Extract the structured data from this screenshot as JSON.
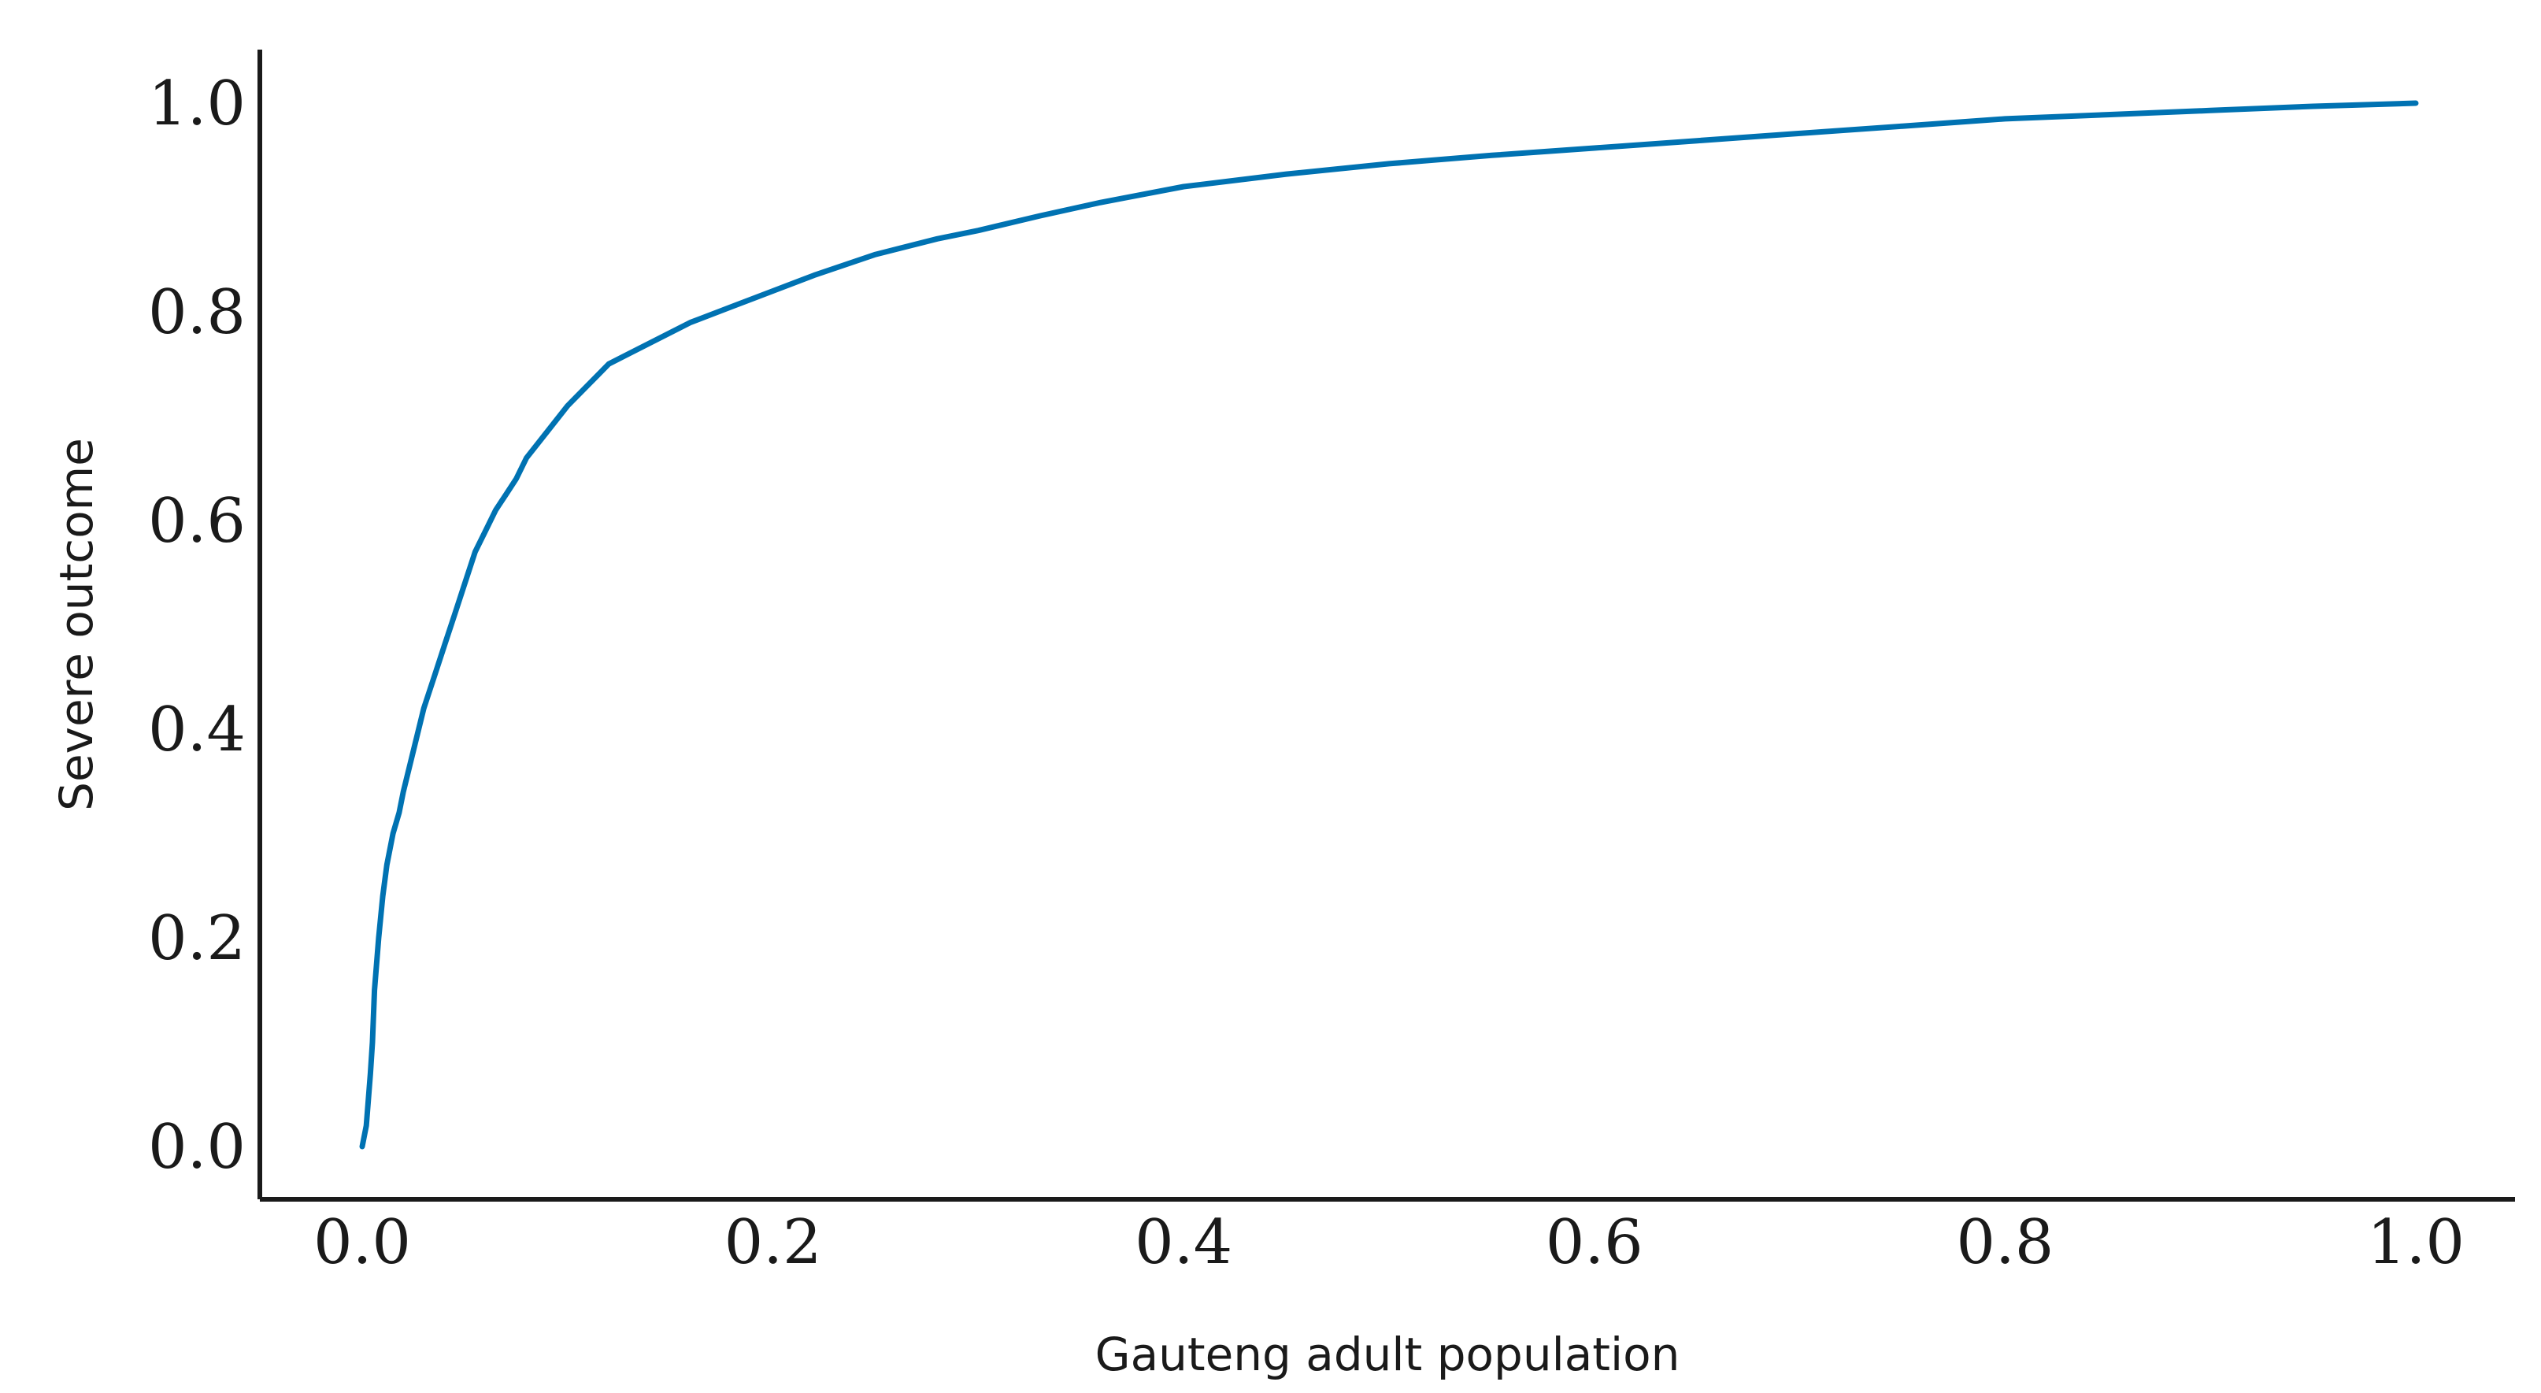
{
  "chart_data": {
    "type": "line",
    "title": "",
    "xlabel": "Gauteng adult population",
    "ylabel": "Severe outcome",
    "xlim": [
      -0.05,
      1.05
    ],
    "ylim": [
      -0.05,
      1.05
    ],
    "x_ticks": [
      0.0,
      0.2,
      0.4,
      0.6,
      0.8,
      1.0
    ],
    "x_tick_labels": [
      "0.0",
      "0.2",
      "0.4",
      "0.6",
      "0.8",
      "1.0"
    ],
    "y_ticks": [
      0.0,
      0.2,
      0.4,
      0.6,
      0.8,
      1.0
    ],
    "y_tick_labels": [
      "0.0",
      "0.2",
      "0.4",
      "0.6",
      "0.8",
      "1.0"
    ],
    "grid": false,
    "legend": "none",
    "series": [
      {
        "color": "#0072b2",
        "x": [
          0.0,
          0.002,
          0.004,
          0.005,
          0.006,
          0.008,
          0.01,
          0.012,
          0.015,
          0.018,
          0.02,
          0.025,
          0.03,
          0.035,
          0.04,
          0.045,
          0.05,
          0.055,
          0.06,
          0.065,
          0.07,
          0.075,
          0.08,
          0.09,
          0.1,
          0.11,
          0.12,
          0.13,
          0.14,
          0.15,
          0.16,
          0.18,
          0.2,
          0.22,
          0.25,
          0.28,
          0.3,
          0.33,
          0.36,
          0.4,
          0.45,
          0.5,
          0.55,
          0.6,
          0.65,
          0.7,
          0.75,
          0.8,
          0.85,
          0.9,
          0.95,
          1.0
        ],
        "y": [
          0.0,
          0.02,
          0.07,
          0.1,
          0.15,
          0.2,
          0.24,
          0.27,
          0.3,
          0.32,
          0.34,
          0.38,
          0.42,
          0.45,
          0.48,
          0.51,
          0.54,
          0.57,
          0.59,
          0.61,
          0.625,
          0.64,
          0.66,
          0.685,
          0.71,
          0.73,
          0.75,
          0.76,
          0.77,
          0.78,
          0.79,
          0.805,
          0.82,
          0.835,
          0.855,
          0.87,
          0.878,
          0.892,
          0.905,
          0.92,
          0.932,
          0.942,
          0.95,
          0.957,
          0.964,
          0.971,
          0.978,
          0.985,
          0.989,
          0.993,
          0.997,
          1.0
        ]
      }
    ]
  }
}
